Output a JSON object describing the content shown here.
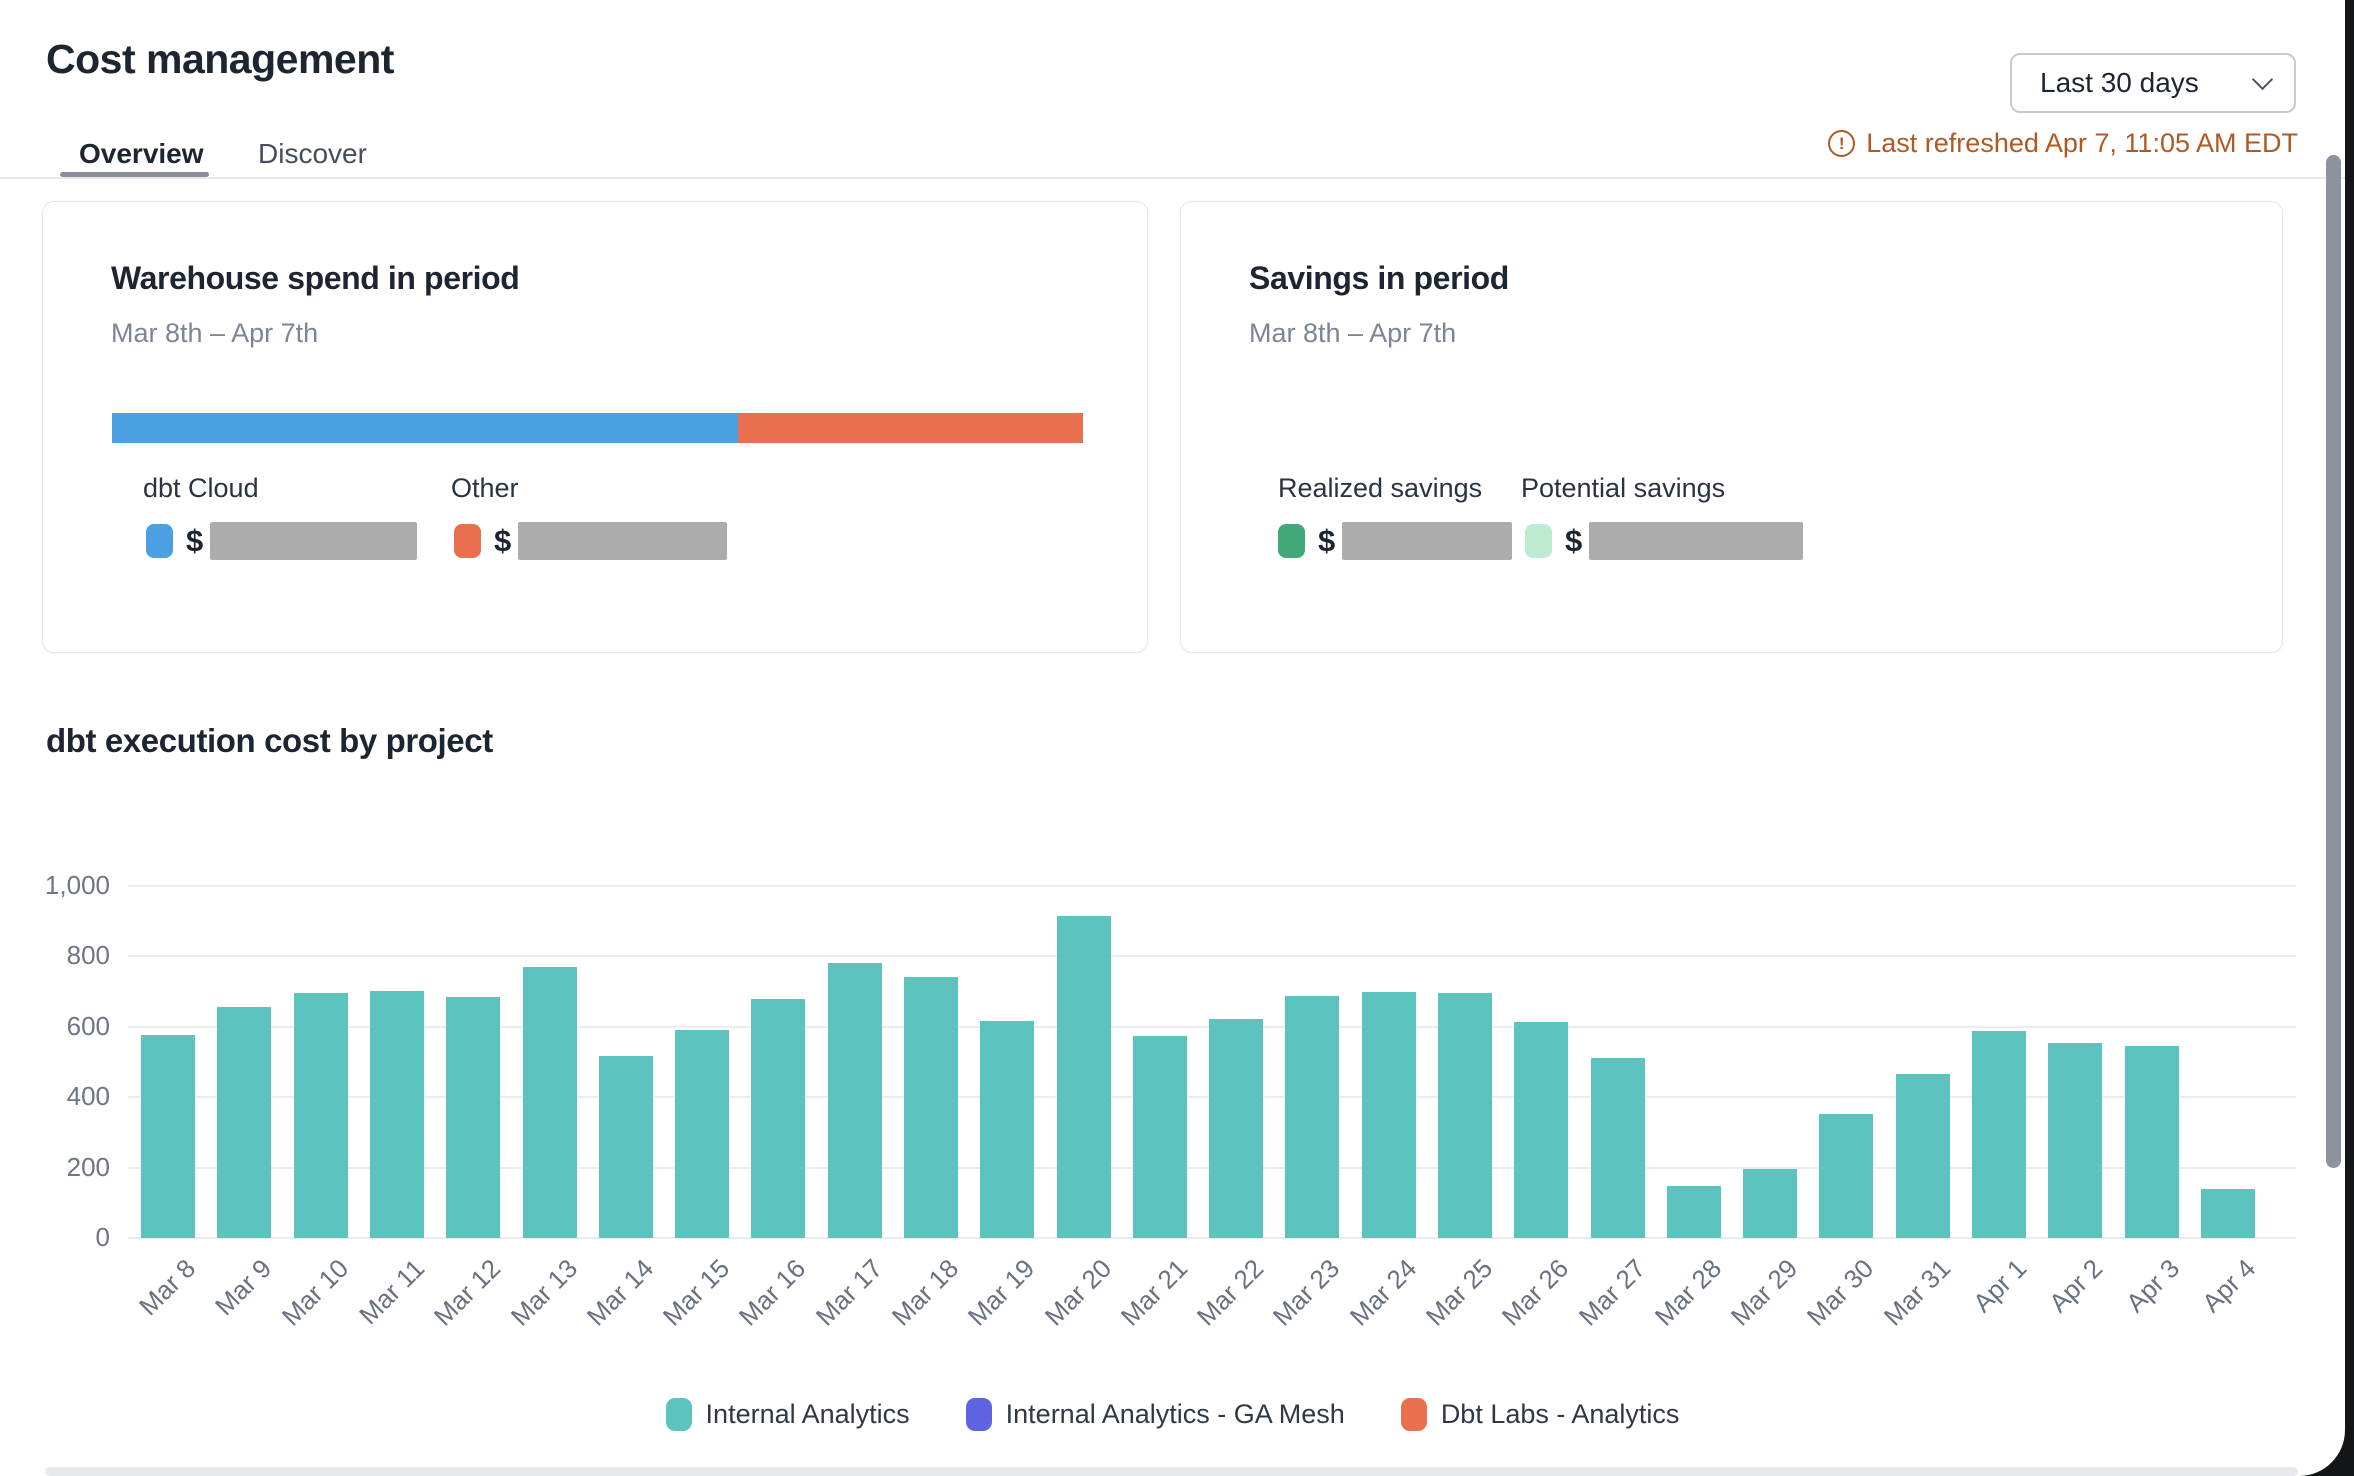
{
  "header": {
    "title": "Cost management",
    "date_range_selector": "Last 30 days",
    "last_refreshed": "Last refreshed Apr 7, 11:05 AM EDT",
    "refresh_status_color": "#AF5A23"
  },
  "tabs": [
    {
      "label": "Overview",
      "active": true
    },
    {
      "label": "Discover",
      "active": false
    }
  ],
  "cards": {
    "warehouse": {
      "title": "Warehouse spend in period",
      "subtitle": "Mar 8th – Apr 7th",
      "bar_segments": [
        {
          "label": "dbt Cloud",
          "color": "#4AA0E0",
          "fraction": 0.645
        },
        {
          "label": "Other",
          "color": "#E9704E",
          "fraction": 0.355
        }
      ],
      "entries": [
        {
          "label": "dbt Cloud",
          "swatch_color": "#4AA0E0",
          "currency": "$",
          "value_redacted": true
        },
        {
          "label": "Other",
          "swatch_color": "#E9704E",
          "currency": "$",
          "value_redacted": true
        }
      ],
      "redacted_color": "#ACACAC"
    },
    "savings": {
      "title": "Savings in period",
      "subtitle": "Mar 8th – Apr 7th",
      "entries": [
        {
          "label": "Realized savings",
          "swatch_color": "#43A877",
          "currency": "$",
          "value_redacted": true
        },
        {
          "label": "Potential savings",
          "swatch_color": "#BFEAD2",
          "currency": "$",
          "value_redacted": true
        }
      ],
      "redacted_color": "#ACACAC"
    }
  },
  "chart_data": {
    "type": "bar",
    "title": "dbt execution cost by project",
    "categories": [
      "Mar 8",
      "Mar 9",
      "Mar 10",
      "Mar 11",
      "Mar 12",
      "Mar 13",
      "Mar 14",
      "Mar 15",
      "Mar 16",
      "Mar 17",
      "Mar 18",
      "Mar 19",
      "Mar 20",
      "Mar 21",
      "Mar 22",
      "Mar 23",
      "Mar 24",
      "Mar 25",
      "Mar 26",
      "Mar 27",
      "Mar 28",
      "Mar 29",
      "Mar 30",
      "Mar 31",
      "Apr 1",
      "Apr 2",
      "Apr 3",
      "Apr 4"
    ],
    "series": [
      {
        "name": "Internal Analytics",
        "color": "#5CC3BE",
        "values": [
          575,
          655,
          695,
          700,
          685,
          770,
          515,
          590,
          678,
          780,
          740,
          615,
          913,
          572,
          620,
          686,
          698,
          696,
          612,
          512,
          148,
          197,
          353,
          465,
          588,
          553,
          546,
          140
        ]
      },
      {
        "name": "Internal Analytics - GA Mesh",
        "color": "#5F64E3",
        "values": []
      },
      {
        "name": "Dbt Labs - Analytics",
        "color": "#E9704E",
        "values": []
      }
    ],
    "legend": [
      {
        "label": "Internal Analytics",
        "color": "#5CC3BE"
      },
      {
        "label": "Internal Analytics - GA Mesh",
        "color": "#5F64E3"
      },
      {
        "label": "Dbt Labs - Analytics",
        "color": "#E9704E"
      }
    ],
    "xlabel": "",
    "ylabel": "",
    "ylim": [
      0,
      1000
    ],
    "yticks": [
      0,
      200,
      400,
      600,
      800,
      1000
    ],
    "ytick_labels": [
      "0",
      "200",
      "400",
      "600",
      "800",
      "1,000"
    ],
    "grid": true,
    "legend_position": "bottom",
    "xtick_rotation": -45
  }
}
